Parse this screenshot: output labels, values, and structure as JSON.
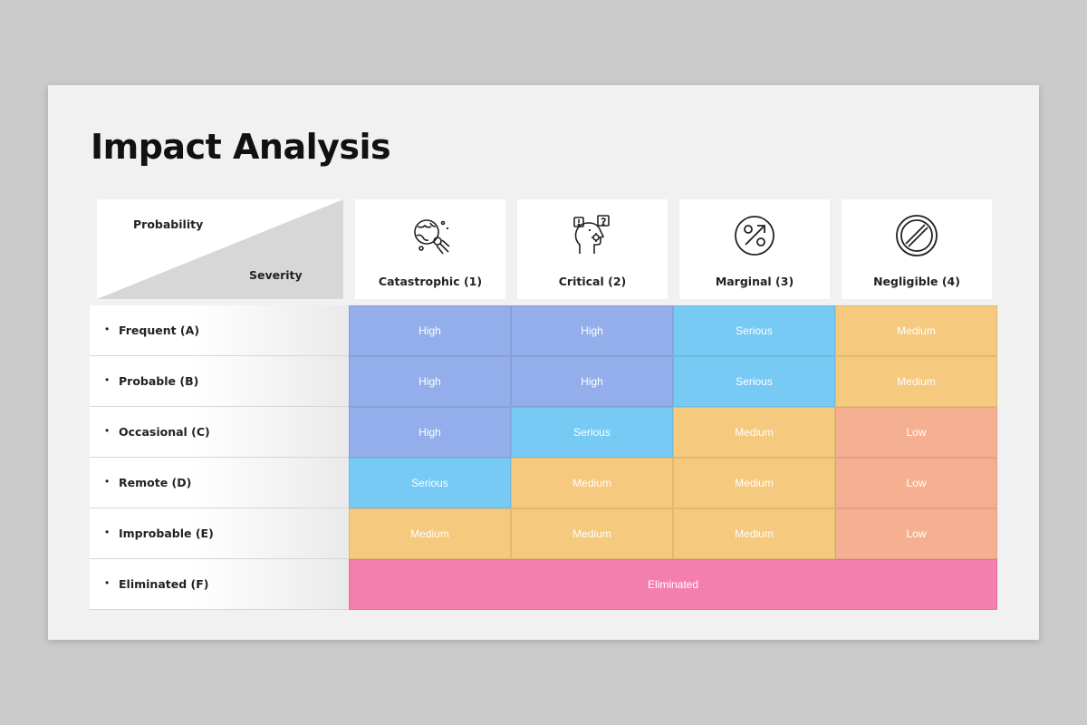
{
  "title": "Impact Analysis",
  "corner": {
    "probability_label": "Probability",
    "severity_label": "Severity"
  },
  "columns": [
    {
      "label": "Catastrophic (1)",
      "icon": "globe-asteroid-icon"
    },
    {
      "label": "Critical (2)",
      "icon": "head-question-icon"
    },
    {
      "label": "Marginal (3)",
      "icon": "percent-icon"
    },
    {
      "label": "Negligible (4)",
      "icon": "prohibited-icon"
    }
  ],
  "rows": [
    {
      "bullet": "•",
      "label": "Frequent (A)",
      "cells": [
        "High",
        "High",
        "Serious",
        "Medium"
      ]
    },
    {
      "bullet": "•",
      "label": "Probable (B)",
      "cells": [
        "High",
        "High",
        "Serious",
        "Medium"
      ]
    },
    {
      "bullet": "•",
      "label": "Occasional (C)",
      "cells": [
        "High",
        "Serious",
        "Medium",
        "Low"
      ]
    },
    {
      "bullet": "•",
      "label": "Remote (D)",
      "cells": [
        "Serious",
        "Medium",
        "Medium",
        "Low"
      ]
    },
    {
      "bullet": "•",
      "label": "Improbable (E)",
      "cells": [
        "Medium",
        "Medium",
        "Medium",
        "Low"
      ]
    },
    {
      "bullet": "•",
      "label": "Eliminated (F)",
      "merged": "Eliminated"
    }
  ],
  "colors": {
    "High": "#93aeea",
    "Serious": "#77caf4",
    "Medium": "#f5c97e",
    "Low": "#f5b092",
    "Eliminated": "#f47fae"
  }
}
